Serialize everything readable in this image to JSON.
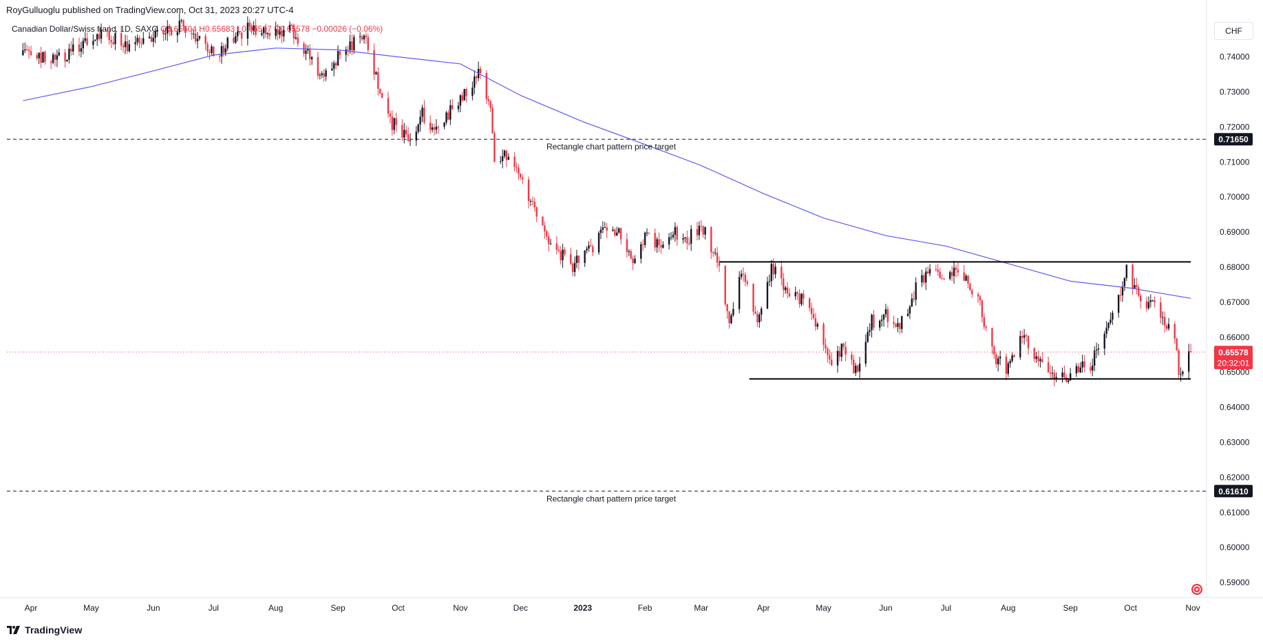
{
  "header": {
    "publisher": "RoyGulluoglu published on TradingView.com, Oct 31, 2023 20:27 UTC-4",
    "symbol": "Canadian Dollar/Swiss franc, 1D, SAXO",
    "open": "O0.65604",
    "high": "H0.65683",
    "low": "L0.65507",
    "close": "C0.65578",
    "change": "−0.00026 (−0.06%)",
    "currency_button": "CHF"
  },
  "branding": {
    "label": "TradingView",
    "icon": "tradingview-logo-icon"
  },
  "colors": {
    "up": "#131722",
    "down": "#f23645",
    "ma": "#5b5bf0",
    "lines": "#000000"
  },
  "chart_data": {
    "type": "candlestick",
    "symbol": "CADCHF",
    "interval": "1D",
    "date_range": [
      "2022-03-28",
      "2023-10-31"
    ],
    "x_ticks": [
      "Apr",
      "May",
      "Jun",
      "Jul",
      "Aug",
      "Sep",
      "Oct",
      "Nov",
      "Dec",
      "2023",
      "Feb",
      "Mar",
      "Apr",
      "May",
      "Jun",
      "Jul",
      "Aug",
      "Sep",
      "Oct",
      "Nov"
    ],
    "x_tick_dates": [
      "2022-04-01",
      "2022-05-01",
      "2022-06-01",
      "2022-07-01",
      "2022-08-01",
      "2022-09-01",
      "2022-10-01",
      "2022-11-01",
      "2022-12-01",
      "2023-01-01",
      "2023-02-01",
      "2023-03-01",
      "2023-04-01",
      "2023-05-01",
      "2023-06-01",
      "2023-07-01",
      "2023-08-01",
      "2023-09-01",
      "2023-10-01",
      "2023-11-01"
    ],
    "y_ticks": [
      "0.59000",
      "0.60000",
      "0.61000",
      "0.62000",
      "0.63000",
      "0.64000",
      "0.65000",
      "0.66000",
      "0.67000",
      "0.68000",
      "0.69000",
      "0.70000",
      "0.71000",
      "0.72000",
      "0.73000",
      "0.74000"
    ],
    "ylim": [
      0.5857,
      0.7519
    ],
    "grid": false,
    "price_path": [
      [
        "2022-03-28",
        0.7405
      ],
      [
        "2022-04-14",
        0.7388
      ],
      [
        "2022-05-05",
        0.747
      ],
      [
        "2022-05-20",
        0.743
      ],
      [
        "2022-06-15",
        0.749
      ],
      [
        "2022-07-01",
        0.741
      ],
      [
        "2022-07-20",
        0.7485
      ],
      [
        "2022-08-10",
        0.747
      ],
      [
        "2022-08-24",
        0.735
      ],
      [
        "2022-09-01",
        0.74
      ],
      [
        "2022-09-14",
        0.747
      ],
      [
        "2022-09-25",
        0.723
      ],
      [
        "2022-10-06",
        0.716
      ],
      [
        "2022-10-13",
        0.724
      ],
      [
        "2022-10-20",
        0.7185
      ],
      [
        "2022-10-28",
        0.726
      ],
      [
        "2022-11-08",
        0.7335
      ],
      [
        "2022-11-11",
        0.736
      ],
      [
        "2022-11-16",
        0.7255
      ],
      [
        "2022-11-18",
        0.7095
      ],
      [
        "2022-11-25",
        0.713
      ],
      [
        "2022-12-08",
        0.696
      ],
      [
        "2022-12-15",
        0.6865
      ],
      [
        "2022-12-27",
        0.6805
      ],
      [
        "2023-01-05",
        0.685
      ],
      [
        "2023-01-12",
        0.692
      ],
      [
        "2023-01-20",
        0.6895
      ],
      [
        "2023-01-26",
        0.6815
      ],
      [
        "2023-02-02",
        0.69
      ],
      [
        "2023-02-09",
        0.685
      ],
      [
        "2023-02-16",
        0.69
      ],
      [
        "2023-02-23",
        0.6885
      ],
      [
        "2023-03-02",
        0.691
      ],
      [
        "2023-03-09",
        0.6815
      ],
      [
        "2023-03-15",
        0.6625
      ],
      [
        "2023-03-21",
        0.679
      ],
      [
        "2023-03-29",
        0.666
      ],
      [
        "2023-04-05",
        0.6795
      ],
      [
        "2023-04-14",
        0.6735
      ],
      [
        "2023-04-24",
        0.6695
      ],
      [
        "2023-05-01",
        0.658
      ],
      [
        "2023-05-05",
        0.6515
      ],
      [
        "2023-05-10",
        0.6575
      ],
      [
        "2023-05-17",
        0.65
      ],
      [
        "2023-05-24",
        0.664
      ],
      [
        "2023-05-31",
        0.6665
      ],
      [
        "2023-06-09",
        0.664
      ],
      [
        "2023-06-16",
        0.674
      ],
      [
        "2023-06-23",
        0.68
      ],
      [
        "2023-06-29",
        0.6765
      ],
      [
        "2023-07-06",
        0.6805
      ],
      [
        "2023-07-11",
        0.677
      ],
      [
        "2023-07-17",
        0.671
      ],
      [
        "2023-07-25",
        0.6545
      ],
      [
        "2023-07-31",
        0.6505
      ],
      [
        "2023-08-08",
        0.66
      ],
      [
        "2023-08-15",
        0.6545
      ],
      [
        "2023-08-22",
        0.65
      ],
      [
        "2023-08-30",
        0.649
      ],
      [
        "2023-09-05",
        0.6505
      ],
      [
        "2023-09-11",
        0.6525
      ],
      [
        "2023-09-18",
        0.659
      ],
      [
        "2023-09-25",
        0.671
      ],
      [
        "2023-09-29",
        0.681
      ],
      [
        "2023-10-03",
        0.674
      ],
      [
        "2023-10-09",
        0.67
      ],
      [
        "2023-10-16",
        0.6665
      ],
      [
        "2023-10-23",
        0.661
      ],
      [
        "2023-10-25",
        0.65
      ],
      [
        "2023-10-31",
        0.6558
      ]
    ],
    "moving_average": [
      [
        "2022-03-28",
        0.7275
      ],
      [
        "2022-05-01",
        0.7315
      ],
      [
        "2022-06-01",
        0.736
      ],
      [
        "2022-07-01",
        0.7405
      ],
      [
        "2022-08-01",
        0.7425
      ],
      [
        "2022-09-01",
        0.742
      ],
      [
        "2022-10-01",
        0.74
      ],
      [
        "2022-11-01",
        0.738
      ],
      [
        "2022-12-01",
        0.729
      ],
      [
        "2023-01-01",
        0.7215
      ],
      [
        "2023-02-01",
        0.715
      ],
      [
        "2023-03-01",
        0.709
      ],
      [
        "2023-04-01",
        0.701
      ],
      [
        "2023-05-01",
        0.694
      ],
      [
        "2023-06-01",
        0.689
      ],
      [
        "2023-07-01",
        0.686
      ],
      [
        "2023-08-01",
        0.681
      ],
      [
        "2023-09-01",
        0.676
      ],
      [
        "2023-10-01",
        0.674
      ],
      [
        "2023-10-31",
        0.6711
      ]
    ],
    "rectangle": {
      "top_price": 0.6815,
      "bottom_price": 0.6481,
      "top_start": "2023-03-10",
      "bottom_start": "2023-03-25",
      "end": "2023-10-31"
    },
    "targets": [
      {
        "price": 0.7165,
        "label": "0.71650",
        "text": "Rectangle chart pattern price target"
      },
      {
        "price": 0.6161,
        "label": "0.61610",
        "text": "Rectangle chart pattern price target"
      }
    ],
    "last_price": {
      "value": 0.65578,
      "label": "0.65578",
      "countdown": "20:32:01"
    }
  }
}
